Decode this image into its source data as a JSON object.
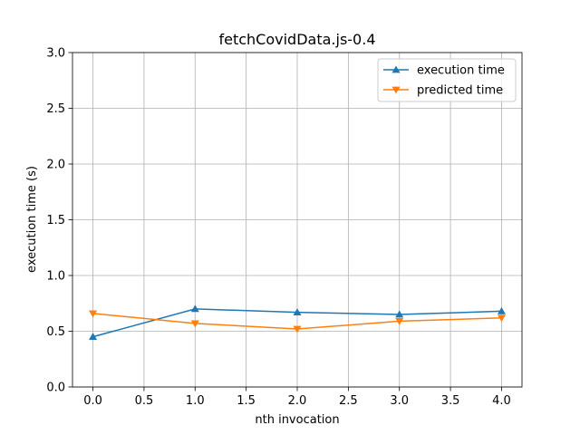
{
  "chart_data": {
    "type": "line",
    "title": "fetchCovidData.js-0.4",
    "xlabel": "nth invocation",
    "ylabel": "execution time (s)",
    "xlim": [
      -0.2,
      4.2
    ],
    "ylim": [
      0,
      3.0
    ],
    "xticks": [
      "0.0",
      "0.5",
      "1.0",
      "1.5",
      "2.0",
      "2.5",
      "3.0",
      "3.5",
      "4.0"
    ],
    "yticks": [
      "0.0",
      "0.5",
      "1.0",
      "1.5",
      "2.0",
      "2.5",
      "3.0"
    ],
    "grid": true,
    "legend_position": "top-right",
    "x": [
      0,
      1,
      2,
      3,
      4
    ],
    "series": [
      {
        "name": "execution time",
        "values": [
          0.45,
          0.7,
          0.67,
          0.65,
          0.68
        ],
        "color": "#1f77b4",
        "marker": "triangle-up"
      },
      {
        "name": "predicted time",
        "values": [
          0.66,
          0.57,
          0.52,
          0.59,
          0.62
        ],
        "color": "#ff7f0e",
        "marker": "triangle-down"
      }
    ]
  }
}
